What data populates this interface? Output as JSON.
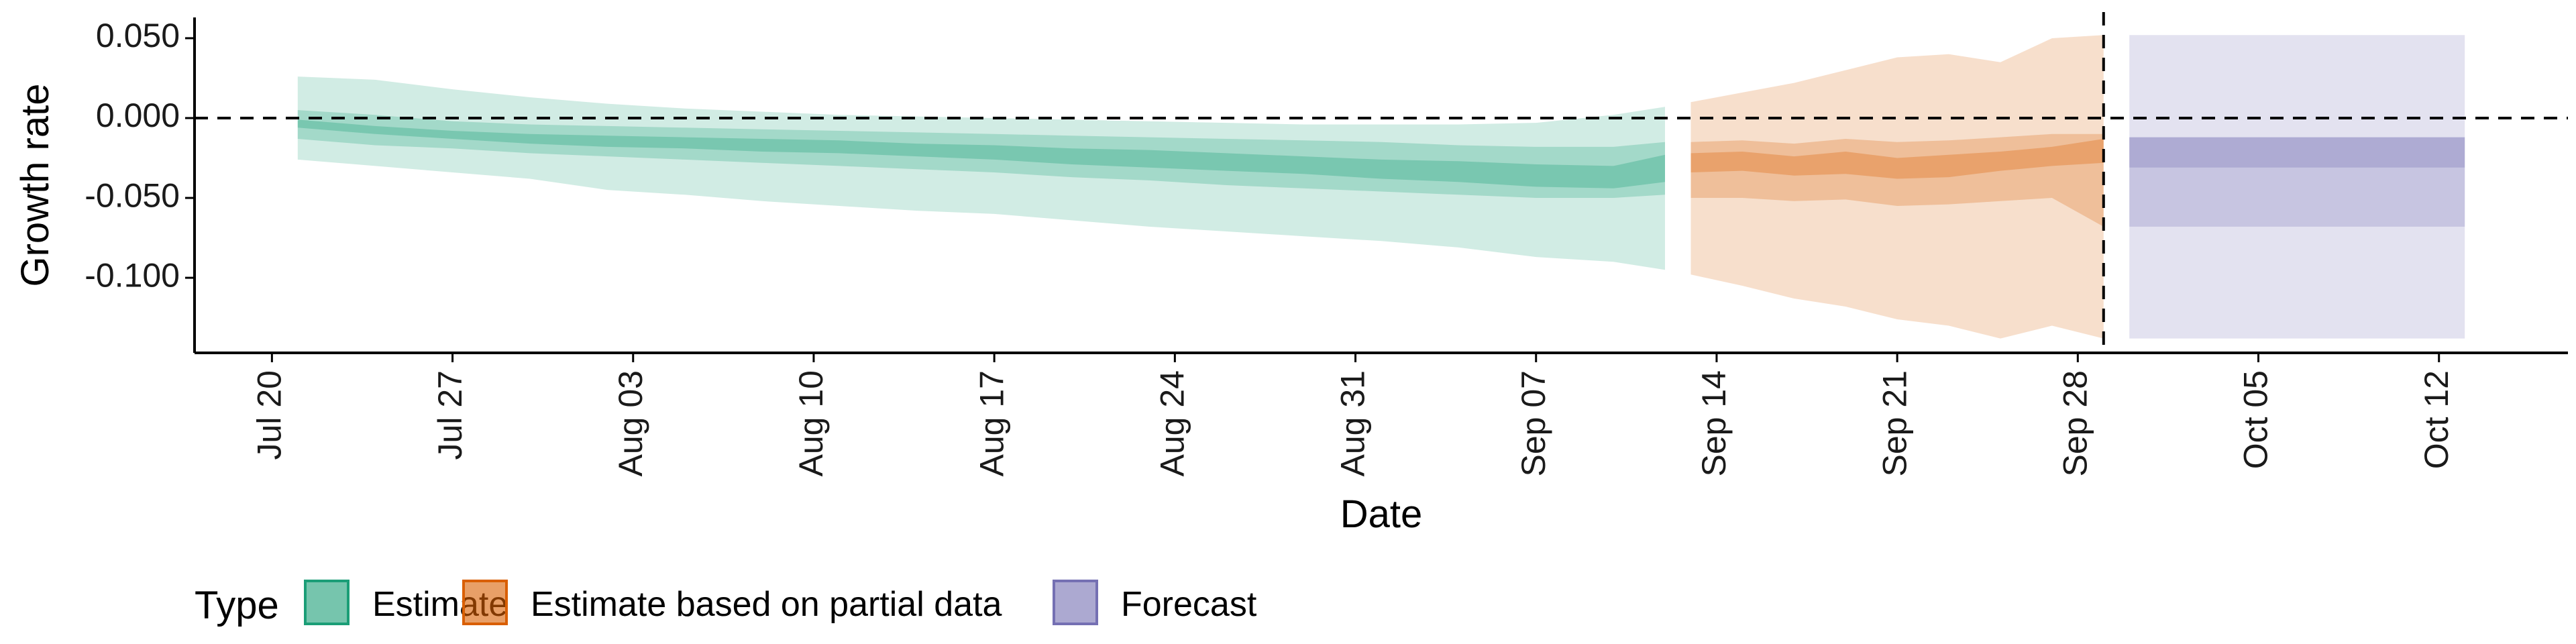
{
  "chart_data": {
    "type": "area",
    "title": "",
    "xlabel": "Date",
    "ylabel": "Growth rate",
    "x_ticks": [
      "Jul 20",
      "Jul 27",
      "Aug 03",
      "Aug 10",
      "Aug 17",
      "Aug 24",
      "Aug 31",
      "Sep 07",
      "Sep 14",
      "Sep 21",
      "Sep 28",
      "Oct 05",
      "Oct 12"
    ],
    "y_ticks": [
      "0.050",
      "0.000",
      "-0.050",
      "-0.100"
    ],
    "xlim": [
      "2020-07-17",
      "2020-10-17"
    ],
    "ylim": [
      -0.147,
      0.063
    ],
    "reference_lines": {
      "horizontal_y": 0.0,
      "vertical_x": "2020-09-29"
    },
    "grid": false,
    "legend": {
      "title": "Type",
      "position": "bottom-left",
      "entries": [
        "Estimate",
        "Estimate based on partial data",
        "Forecast"
      ]
    },
    "colors": {
      "Estimate": "#1b9e77",
      "Estimate based on partial data": "#d95f02",
      "Forecast": "#7570b3"
    },
    "series": [
      {
        "name": "Estimate",
        "x": [
          "2020-07-21",
          "2020-07-24",
          "2020-07-27",
          "2020-07-30",
          "2020-08-02",
          "2020-08-05",
          "2020-08-08",
          "2020-08-11",
          "2020-08-14",
          "2020-08-17",
          "2020-08-20",
          "2020-08-23",
          "2020-08-26",
          "2020-08-29",
          "2020-09-01",
          "2020-09-04",
          "2020-09-07",
          "2020-09-10",
          "2020-09-12"
        ],
        "median": [
          -0.004,
          -0.008,
          -0.011,
          -0.013,
          -0.015,
          -0.016,
          -0.017,
          -0.018,
          -0.02,
          -0.022,
          -0.024,
          -0.026,
          -0.028,
          -0.03,
          -0.032,
          -0.034,
          -0.037,
          -0.038,
          -0.032
        ],
        "lower20": [
          -0.006,
          -0.01,
          -0.013,
          -0.016,
          -0.018,
          -0.019,
          -0.021,
          -0.022,
          -0.024,
          -0.026,
          -0.029,
          -0.031,
          -0.033,
          -0.035,
          -0.038,
          -0.04,
          -0.043,
          -0.044,
          -0.04
        ],
        "upper20": [
          -0.001,
          -0.005,
          -0.008,
          -0.01,
          -0.011,
          -0.012,
          -0.013,
          -0.014,
          -0.016,
          -0.017,
          -0.019,
          -0.02,
          -0.022,
          -0.024,
          -0.026,
          -0.027,
          -0.029,
          -0.03,
          -0.023
        ],
        "lower50": [
          -0.013,
          -0.017,
          -0.019,
          -0.022,
          -0.024,
          -0.026,
          -0.028,
          -0.03,
          -0.032,
          -0.034,
          -0.037,
          -0.039,
          -0.042,
          -0.044,
          -0.046,
          -0.048,
          -0.05,
          -0.05,
          -0.048
        ],
        "upper50": [
          0.005,
          0.002,
          -0.002,
          -0.004,
          -0.005,
          -0.006,
          -0.007,
          -0.008,
          -0.009,
          -0.01,
          -0.011,
          -0.012,
          -0.013,
          -0.014,
          -0.015,
          -0.017,
          -0.018,
          -0.018,
          -0.015
        ],
        "lower90": [
          -0.026,
          -0.03,
          -0.034,
          -0.038,
          -0.045,
          -0.048,
          -0.052,
          -0.055,
          -0.058,
          -0.06,
          -0.064,
          -0.068,
          -0.071,
          -0.074,
          -0.077,
          -0.081,
          -0.087,
          -0.09,
          -0.095
        ],
        "upper90": [
          0.026,
          0.024,
          0.018,
          0.013,
          0.009,
          0.006,
          0.004,
          0.002,
          0.001,
          0.0,
          -0.001,
          -0.002,
          -0.003,
          -0.004,
          -0.004,
          -0.004,
          -0.003,
          0.002,
          0.007
        ]
      },
      {
        "name": "Estimate based on partial data",
        "x": [
          "2020-09-13",
          "2020-09-15",
          "2020-09-17",
          "2020-09-19",
          "2020-09-21",
          "2020-09-23",
          "2020-09-25",
          "2020-09-27",
          "2020-09-29"
        ],
        "median": [
          -0.028,
          -0.027,
          -0.03,
          -0.028,
          -0.031,
          -0.03,
          -0.027,
          -0.024,
          -0.022
        ],
        "lower20": [
          -0.034,
          -0.033,
          -0.036,
          -0.035,
          -0.038,
          -0.037,
          -0.033,
          -0.03,
          -0.028
        ],
        "upper20": [
          -0.022,
          -0.021,
          -0.024,
          -0.021,
          -0.025,
          -0.023,
          -0.021,
          -0.018,
          -0.013
        ],
        "lower50": [
          -0.05,
          -0.05,
          -0.052,
          -0.051,
          -0.055,
          -0.054,
          -0.052,
          -0.05,
          -0.068
        ],
        "upper50": [
          -0.015,
          -0.014,
          -0.016,
          -0.013,
          -0.015,
          -0.014,
          -0.012,
          -0.01,
          -0.01
        ],
        "lower90": [
          -0.098,
          -0.105,
          -0.113,
          -0.118,
          -0.126,
          -0.13,
          -0.138,
          -0.13,
          -0.138
        ],
        "upper90": [
          0.01,
          0.016,
          0.022,
          0.03,
          0.038,
          0.04,
          0.035,
          0.05,
          0.052
        ]
      },
      {
        "name": "Forecast",
        "x": [
          "2020-09-30",
          "2020-10-13"
        ],
        "median": [
          -0.02,
          -0.02
        ],
        "lower20": [
          -0.031,
          -0.031
        ],
        "upper20": [
          -0.012,
          -0.012
        ],
        "lower50": [
          -0.068,
          -0.068
        ],
        "upper50": [
          -0.012,
          -0.012
        ],
        "lower90": [
          -0.138,
          -0.138
        ],
        "upper90": [
          0.052,
          0.052
        ]
      }
    ]
  }
}
